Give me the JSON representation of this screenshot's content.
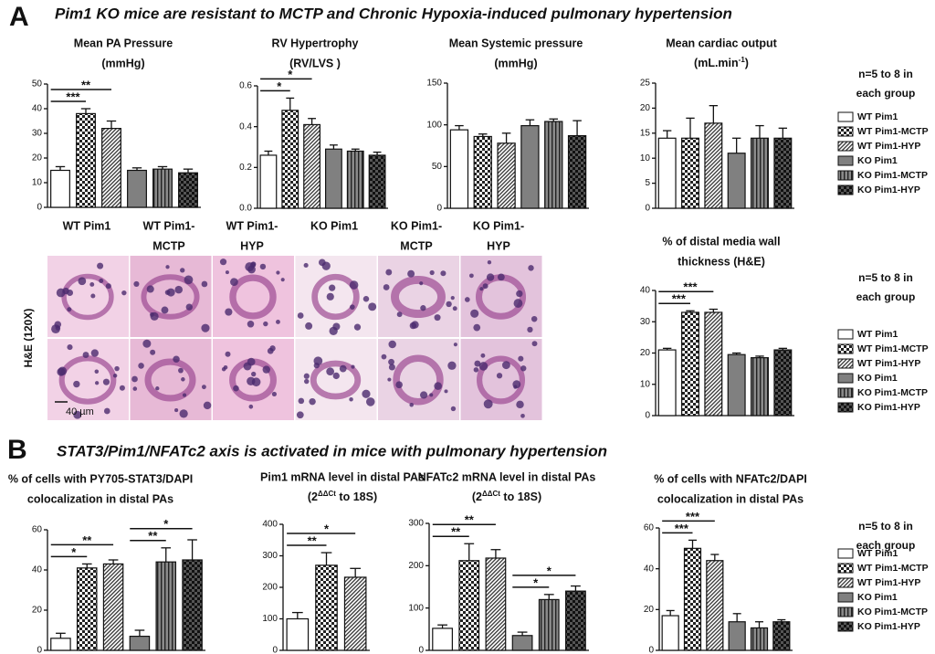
{
  "panels": [
    {
      "label": "A",
      "title": "Pim1 KO mice are resistant to MCTP and Chronic Hypoxia-induced pulmonary hypertension"
    },
    {
      "label": "B",
      "title": "STAT3/Pim1/NFATc2 axis is activated in mice with pulmonary hypertension"
    }
  ],
  "histology": {
    "columns": [
      [
        "WT Pim1"
      ],
      [
        "WT Pim1-",
        "MCTP"
      ],
      [
        "WT Pim1-",
        "HYP"
      ],
      [
        "KO Pim1"
      ],
      [
        "KO Pim1-",
        "MCTP"
      ],
      [
        "KO Pim1-",
        "HYP"
      ]
    ],
    "stain": "H&E (120X)",
    "scale_bar": "40 µm"
  },
  "legends": [
    {
      "note": [
        "n=5 to 8 in",
        "each group"
      ],
      "entries": [
        "WT Pim1",
        "WT Pim1-MCTP",
        "WT Pim1-HYP",
        "KO Pim1",
        "KO Pim1-MCTP",
        "KO Pim1-HYP"
      ]
    },
    {
      "note": [
        "n=5 to 8 in",
        "each group"
      ],
      "entries": [
        "WT Pim1",
        "WT Pim1-MCTP",
        "WT Pim1-HYP",
        "KO Pim1",
        "KO Pim1-MCTP",
        "KO Pim1-HYP"
      ]
    },
    {
      "note": [
        "n=5 to 8 in",
        "each group"
      ],
      "entries": [
        "WT Pim1",
        "WT Pim1-MCTP",
        "WT Pim1-HYP",
        "KO Pim1",
        "KO Pim1-MCTP",
        "KO Pim1-HYP"
      ]
    }
  ],
  "chart_data": [
    {
      "type": "bar",
      "title": [
        "Mean PA Pressure",
        "(mmHg)"
      ],
      "values": [
        15,
        38,
        32,
        15,
        15.5,
        14
      ],
      "errors": [
        1.5,
        2,
        3,
        1,
        1,
        1.5
      ],
      "ylim": [
        0,
        50
      ],
      "yticks": [
        0,
        10,
        20,
        30,
        40,
        50
      ],
      "brackets": [
        {
          "text": "***",
          "span": [
            0,
            1
          ]
        },
        {
          "text": "**",
          "span": [
            0,
            2
          ]
        }
      ]
    },
    {
      "type": "bar",
      "title": [
        "RV Hypertrophy",
        "(RV/LVS )"
      ],
      "values": [
        0.26,
        0.48,
        0.41,
        0.29,
        0.28,
        0.26
      ],
      "errors": [
        0.02,
        0.06,
        0.03,
        0.02,
        0.01,
        0.015
      ],
      "ylim": [
        0,
        0.6
      ],
      "yticks": [
        {
          "value": 0,
          "label": "0.0"
        },
        0.2,
        0.4,
        0.6
      ],
      "brackets": [
        {
          "text": "*",
          "span": [
            0,
            1
          ]
        },
        {
          "text": "*",
          "span": [
            0,
            2
          ]
        }
      ]
    },
    {
      "type": "bar",
      "title": [
        "Mean Systemic pressure",
        "(mmHg)"
      ],
      "values": [
        94,
        86,
        78,
        99,
        104,
        87
      ],
      "errors": [
        5,
        3,
        12,
        7,
        3,
        18
      ],
      "ylim": [
        0,
        150
      ],
      "yticks": [
        0,
        50,
        100,
        150
      ],
      "brackets": []
    },
    {
      "type": "bar",
      "title": [
        "Mean cardiac output",
        [
          "(mL.min",
          {
            "sup": "-1"
          },
          ")"
        ]
      ],
      "values": [
        14,
        14,
        17,
        11,
        14,
        14
      ],
      "errors": [
        1.5,
        4,
        3.5,
        3,
        2.5,
        2
      ],
      "ylim": [
        0,
        25
      ],
      "yticks": [
        0,
        5,
        10,
        15,
        20,
        25
      ],
      "brackets": []
    },
    {
      "type": "bar",
      "title": [
        "% of distal media wall",
        "thickness (H&E)"
      ],
      "values": [
        21,
        33,
        33,
        19.5,
        18.5,
        21
      ],
      "errors": [
        0.5,
        0.5,
        1,
        0.5,
        0.5,
        0.5
      ],
      "ylim": [
        0,
        40
      ],
      "yticks": [
        0,
        10,
        20,
        30,
        40
      ],
      "brackets": [
        {
          "text": "***",
          "span": [
            0,
            1
          ]
        },
        {
          "text": "***",
          "span": [
            0,
            2
          ]
        }
      ]
    },
    {
      "type": "bar",
      "title": [
        "% of cells with PY705-STAT3/DAPI",
        "colocalization in distal PAs"
      ],
      "values": [
        6,
        41,
        43,
        7,
        44,
        45
      ],
      "errors": [
        2.5,
        2,
        2,
        3,
        7,
        10
      ],
      "ylim": [
        0,
        60
      ],
      "yticks": [
        0,
        20,
        40,
        60
      ],
      "brackets": [
        {
          "text": "*",
          "span": [
            0,
            1
          ]
        },
        {
          "text": "**",
          "span": [
            0,
            2
          ]
        },
        {
          "text": "**",
          "span": [
            3,
            4
          ]
        },
        {
          "text": "*",
          "span": [
            3,
            5
          ]
        }
      ]
    },
    {
      "type": "bar",
      "title": [
        "Pim1 mRNA level in distal PAs",
        [
          "(2",
          {
            "sup": "ΔΔCt"
          },
          " to 18S)"
        ]
      ],
      "values": [
        100,
        270,
        232
      ],
      "errors": [
        20,
        40,
        28
      ],
      "ylim": [
        0,
        400
      ],
      "yticks": [
        0,
        100,
        200,
        300,
        400
      ],
      "brackets": [
        {
          "text": "**",
          "span": [
            0,
            1
          ]
        },
        {
          "text": "*",
          "span": [
            0,
            2
          ]
        }
      ]
    },
    {
      "type": "bar",
      "title": [
        "NFATc2 mRNA level in distal PAs",
        [
          "(2",
          {
            "sup": "ΔΔCt"
          },
          "  to 18S)"
        ]
      ],
      "values": [
        52,
        212,
        218,
        35,
        120,
        140
      ],
      "errors": [
        8,
        40,
        20,
        8,
        12,
        12
      ],
      "ylim": [
        0,
        300
      ],
      "yticks": [
        0,
        100,
        200,
        300
      ],
      "brackets": [
        {
          "text": "**",
          "span": [
            0,
            1
          ]
        },
        {
          "text": "**",
          "span": [
            0,
            2
          ]
        },
        {
          "text": "*",
          "span": [
            3,
            4
          ]
        },
        {
          "text": "*",
          "span": [
            3,
            5
          ]
        }
      ]
    },
    {
      "type": "bar",
      "title": [
        "% of cells with NFATc2/DAPI",
        "colocalization in distal PAs"
      ],
      "values": [
        17,
        50,
        44,
        14,
        11,
        14
      ],
      "errors": [
        2.5,
        4,
        3,
        4,
        3,
        1
      ],
      "ylim": [
        0,
        60
      ],
      "yticks": [
        0,
        20,
        40,
        60
      ],
      "brackets": [
        {
          "text": "***",
          "span": [
            0,
            1
          ]
        },
        {
          "text": "***",
          "span": [
            0,
            2
          ]
        }
      ]
    }
  ]
}
